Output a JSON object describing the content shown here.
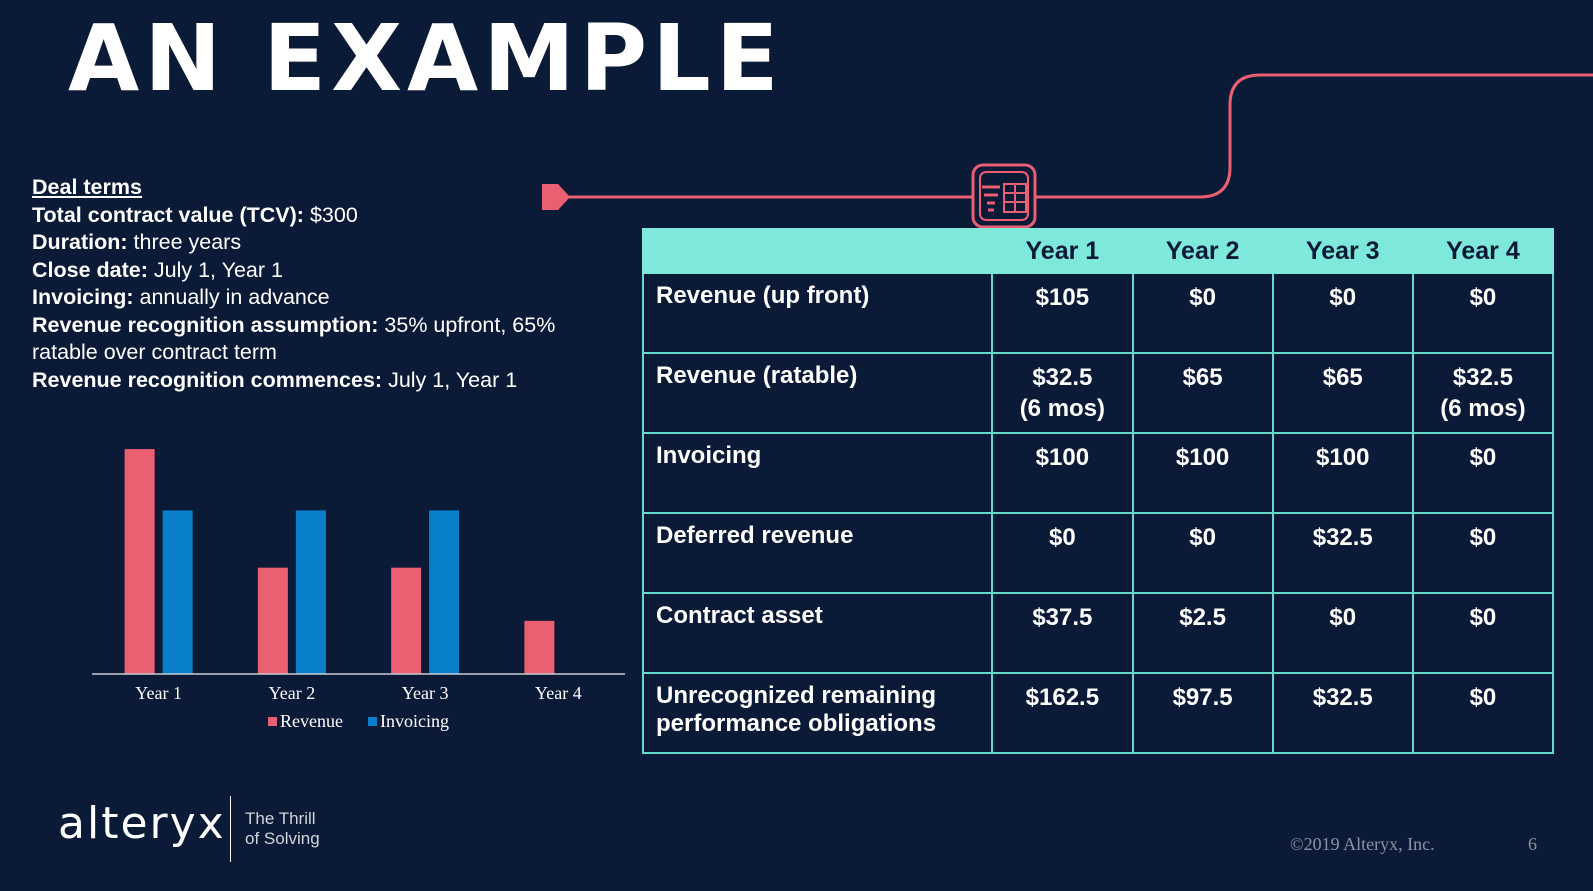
{
  "title": "AN EXAMPLE",
  "colors": {
    "background": "#0b1a36",
    "accent_pink": "#ea5f72",
    "accent_blue": "#0a80cc",
    "table_header": "#7ee8da",
    "table_border": "#64d8cb"
  },
  "deal_terms": {
    "heading": "Deal terms",
    "items": [
      {
        "label": "Total contract value (TCV):",
        "value": "$300"
      },
      {
        "label": "Duration:",
        "value": "three years"
      },
      {
        "label": "Close date:",
        "value": "July 1, Year 1"
      },
      {
        "label": "Invoicing:",
        "value": "annually in advance"
      },
      {
        "label": "Revenue recognition assumption:",
        "value": "35% upfront, 65% ratable over contract term"
      },
      {
        "label": "Revenue recognition commences:",
        "value": "July 1, Year 1"
      }
    ]
  },
  "chart_data": {
    "type": "bar",
    "categories": [
      "Year 1",
      "Year 2",
      "Year 3",
      "Year 4"
    ],
    "series": [
      {
        "name": "Revenue",
        "values": [
          137.5,
          65,
          65,
          32.5
        ],
        "color": "#ea5f72"
      },
      {
        "name": "Invoicing",
        "values": [
          100,
          100,
          100,
          0
        ],
        "color": "#0a80cc"
      }
    ],
    "ylim": [
      0,
      140
    ],
    "grid": false,
    "legend": "bottom"
  },
  "table": {
    "headers": [
      "",
      "Year 1",
      "Year 2",
      "Year 3",
      "Year 4"
    ],
    "rows": [
      {
        "label": "Revenue (up front)",
        "values": [
          [
            "$105"
          ],
          [
            "$0"
          ],
          [
            "$0"
          ],
          [
            "$0"
          ]
        ]
      },
      {
        "label": "Revenue (ratable)",
        "values": [
          [
            "$32.5",
            "(6 mos)"
          ],
          [
            "$65"
          ],
          [
            "$65"
          ],
          [
            "$32.5",
            "(6 mos)"
          ]
        ]
      },
      {
        "label": "Invoicing",
        "values": [
          [
            "$100"
          ],
          [
            "$100"
          ],
          [
            "$100"
          ],
          [
            "$0"
          ]
        ]
      },
      {
        "label": "Deferred revenue",
        "values": [
          [
            "$0"
          ],
          [
            "$0"
          ],
          [
            "$32.5"
          ],
          [
            "$0"
          ]
        ]
      },
      {
        "label": "Contract asset",
        "values": [
          [
            "$37.5"
          ],
          [
            "$2.5"
          ],
          [
            "$0"
          ],
          [
            "$0"
          ]
        ]
      },
      {
        "label": "Unrecognized remaining performance obligations",
        "values": [
          [
            "$162.5"
          ],
          [
            "$97.5"
          ],
          [
            "$32.5"
          ],
          [
            "$0"
          ]
        ]
      }
    ]
  },
  "footer": {
    "logo": "alteryx",
    "tagline_line1": "The Thrill",
    "tagline_line2": "of Solving",
    "copyright": "©2019 Alteryx, Inc.",
    "page_number": "6"
  },
  "icons": [
    "table-tool-icon",
    "connector-arrow-icon"
  ]
}
